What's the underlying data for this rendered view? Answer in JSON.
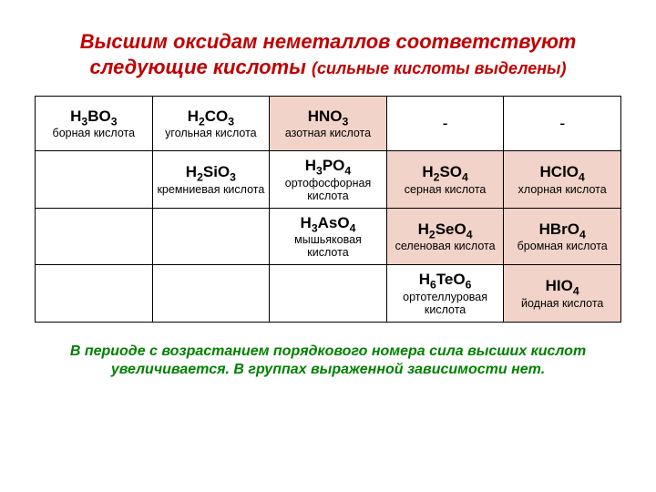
{
  "title_line1": "Высшим оксидам неметаллов соответствуют",
  "title_line2_a": "следующие кислоты ",
  "title_line2_b": "(сильные кислоты выделены)",
  "title_color": "#c00000",
  "footer_line1": "В периоде с возрастанием порядкового номера сила высших кислот",
  "footer_line2": "увеличивается. В группах выраженной зависимости нет.",
  "footer_color": "#008000",
  "table": {
    "strong_bg": "#f2d3c9",
    "border_color": "#000000",
    "rows": [
      [
        {
          "formula_html": "H<sub>3</sub>BO<sub>3</sub>",
          "name": "борная кислота",
          "strong": false,
          "empty": false,
          "dash": false
        },
        {
          "formula_html": "H<sub>2</sub>CO<sub>3</sub>",
          "name": "угольная кислота",
          "strong": false,
          "empty": false,
          "dash": false
        },
        {
          "formula_html": "HNO<sub>3</sub>",
          "name": "азотная кислота",
          "strong": true,
          "empty": false,
          "dash": false
        },
        {
          "formula_html": "",
          "name": "",
          "strong": false,
          "empty": false,
          "dash": true
        },
        {
          "formula_html": "",
          "name": "",
          "strong": false,
          "empty": false,
          "dash": true
        }
      ],
      [
        {
          "formula_html": "",
          "name": "",
          "strong": false,
          "empty": true,
          "dash": false
        },
        {
          "formula_html": "H<sub>2</sub>SiO<sub>3</sub>",
          "name": "кремниевая кислота",
          "strong": false,
          "empty": false,
          "dash": false
        },
        {
          "formula_html": "H<sub>3</sub>PO<sub>4</sub>",
          "name": "ортофосфорная кислота",
          "strong": false,
          "empty": false,
          "dash": false
        },
        {
          "formula_html": "H<sub>2</sub>SO<sub>4</sub>",
          "name": "серная кислота",
          "strong": true,
          "empty": false,
          "dash": false
        },
        {
          "formula_html": "HClO<sub>4</sub>",
          "name": "хлорная кислота",
          "strong": true,
          "empty": false,
          "dash": false
        }
      ],
      [
        {
          "formula_html": "",
          "name": "",
          "strong": false,
          "empty": true,
          "dash": false
        },
        {
          "formula_html": "",
          "name": "",
          "strong": false,
          "empty": true,
          "dash": false
        },
        {
          "formula_html": "H<sub>3</sub>AsO<sub>4</sub>",
          "name": "мышьяковая кислота",
          "strong": false,
          "empty": false,
          "dash": false
        },
        {
          "formula_html": "H<sub>2</sub>SeO<sub>4</sub>",
          "name": "селеновая кислота",
          "strong": true,
          "empty": false,
          "dash": false
        },
        {
          "formula_html": "HBrO<sub>4</sub>",
          "name": "бромная кислота",
          "strong": true,
          "empty": false,
          "dash": false
        }
      ],
      [
        {
          "formula_html": "",
          "name": "",
          "strong": false,
          "empty": true,
          "dash": false
        },
        {
          "formula_html": "",
          "name": "",
          "strong": false,
          "empty": true,
          "dash": false
        },
        {
          "formula_html": "",
          "name": "",
          "strong": false,
          "empty": true,
          "dash": false
        },
        {
          "formula_html": "H<sub>6</sub>TeO<sub>6</sub>",
          "name": "ортотеллуровая кислота",
          "strong": false,
          "empty": false,
          "dash": false
        },
        {
          "formula_html": "HIO<sub>4</sub>",
          "name": "йодная кислота",
          "strong": true,
          "empty": false,
          "dash": false
        }
      ]
    ]
  },
  "dash_char": "-"
}
